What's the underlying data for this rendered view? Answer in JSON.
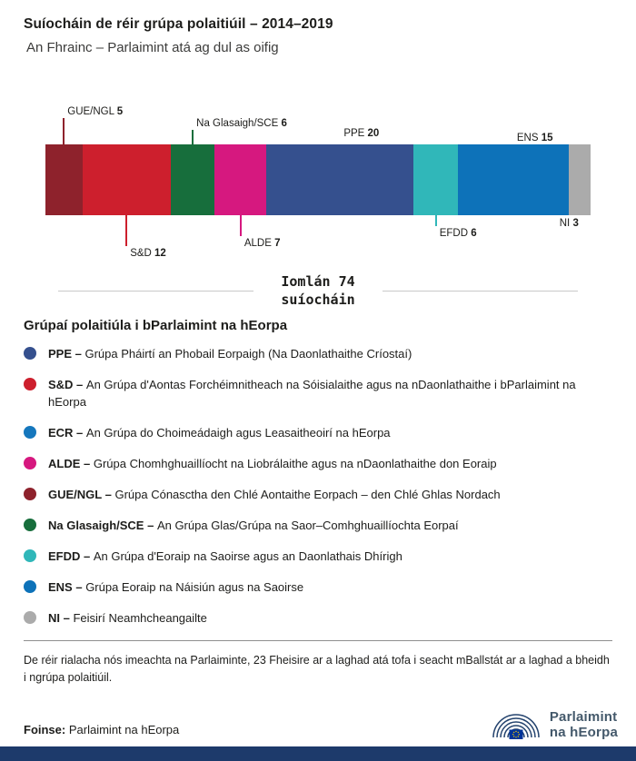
{
  "colors": {
    "footer_bar": "#1d3a6b",
    "logo_text": "#44596b",
    "logo_arcs": "#24436e",
    "flag_blue": "#003399",
    "flag_stars": "#ffcc00",
    "divider": "#c9c9c9"
  },
  "chart_data": {
    "type": "bar",
    "stacked": true,
    "orientation": "horizontal",
    "title": "Suíocháin de réir grúpa polaitiúil – 2014–2019",
    "subtitle": "An Fhrainc – Parlaimint atá ag dul as oifig",
    "total": 74,
    "total_label": {
      "line1": "Iomlán 74",
      "line2": "suíocháin"
    },
    "categories": [
      "GUE/NGL",
      "S&D",
      "Na Glasaigh/SCE",
      "ALDE",
      "PPE",
      "EFDD",
      "ENS",
      "NI"
    ],
    "values": [
      5,
      12,
      6,
      7,
      20,
      6,
      15,
      3
    ],
    "segments": [
      {
        "name": "GUE/NGL",
        "value": 5,
        "color": "#8e222c"
      },
      {
        "name": "S&D",
        "value": 12,
        "color": "#cd1f2d"
      },
      {
        "name": "Na Glasaigh/SCE",
        "value": 6,
        "color": "#176e3c"
      },
      {
        "name": "ALDE",
        "value": 7,
        "color": "#d6187f"
      },
      {
        "name": "PPE",
        "value": 20,
        "color": "#35508e"
      },
      {
        "name": "EFDD",
        "value": 6,
        "color": "#30b7b9"
      },
      {
        "name": "ENS",
        "value": 15,
        "color": "#0d72b9"
      },
      {
        "name": "NI",
        "value": 3,
        "color": "#ababab"
      }
    ]
  },
  "legend": {
    "heading": "Grúpaí polaitiúla i bParlaimint na hEorpa",
    "items": [
      {
        "abbr": "PPE",
        "desc": "Grúpa Pháirtí an Phobail Eorpaigh (Na Daonlathaithe Críostaí)",
        "color": "#35508e"
      },
      {
        "abbr": "S&D",
        "desc": "An Grúpa d'Aontas Forchéimnitheach na Sóisialaithe agus na nDaonlathaithe i bParlaimint na hEorpa",
        "color": "#cd1f2d"
      },
      {
        "abbr": "ECR",
        "desc": "An Grúpa do Choimeádaigh agus Leasaitheoirí na hEorpa",
        "color": "#1577bd"
      },
      {
        "abbr": "ALDE",
        "desc": "Grúpa Chomhghuaillíocht na Liobrálaithe agus na nDaonlathaithe don Eoraip",
        "color": "#d6187f"
      },
      {
        "abbr": "GUE/NGL",
        "desc": "Grúpa Cónasctha den Chlé Aontaithe Eorpach – den Chlé Ghlas Nordach",
        "color": "#8e222c"
      },
      {
        "abbr": "Na Glasaigh/SCE",
        "desc": "An Grúpa Glas/Grúpa na Saor–Comhghuaillíochta Eorpaí",
        "color": "#176e3c"
      },
      {
        "abbr": "EFDD",
        "desc": "An Grúpa d'Eoraip na Saoirse agus an Daonlathais Dhírigh",
        "color": "#30b7b9"
      },
      {
        "abbr": "ENS",
        "desc": "Grúpa Eoraip na Náisiún agus na Saoirse",
        "color": "#0d72b9"
      },
      {
        "abbr": "NI",
        "desc": "Feisirí Neamhcheangailte",
        "color": "#ababab"
      }
    ]
  },
  "footnote": "De réir rialacha nós imeachta na Parlaiminte, 23 Fheisire ar a laghad atá tofa i seacht mBallstát ar a laghad a bheidh i ngrúpa polaitiúil.",
  "source": {
    "label": "Foinse:",
    "text": "Parlaimint na hEorpa"
  },
  "logo": {
    "line1": "Parlaimint",
    "line2": "na hEorpa"
  }
}
